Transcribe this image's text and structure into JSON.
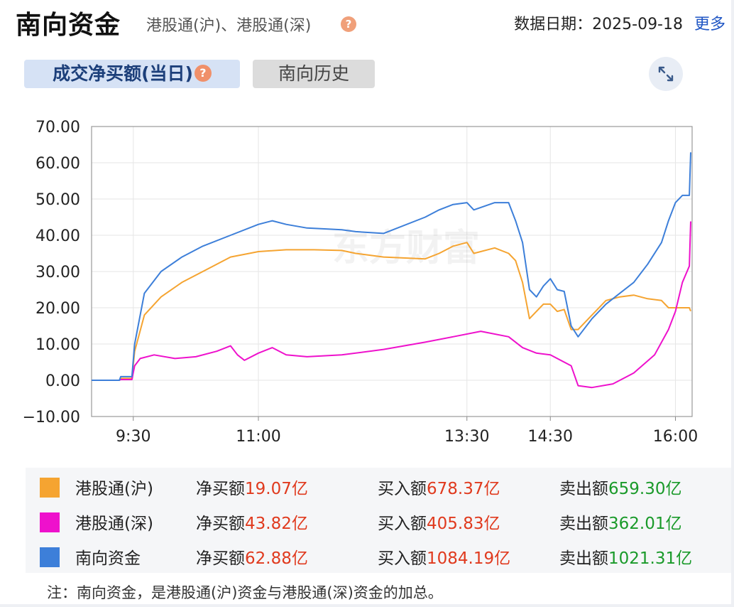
{
  "header": {
    "title": "南向资金",
    "subtitle": "港股通(沪)、港股通(深)",
    "help_icon": "?",
    "date_label": "数据日期：2025-09-18",
    "more_label": "更多"
  },
  "tabs": [
    {
      "label": "成交净买额(当日)",
      "active": true
    },
    {
      "label": "南向历史",
      "active": false
    }
  ],
  "watermark": "东方财富",
  "chart_data": {
    "type": "line",
    "title": "",
    "xlabel": "",
    "ylabel": "",
    "ylim": [
      -10,
      70
    ],
    "yticks": [
      "70.00",
      "60.00",
      "50.00",
      "40.00",
      "30.00",
      "20.00",
      "10.00",
      "0.00",
      "−10.00"
    ],
    "ytick_values": [
      70,
      60,
      50,
      40,
      30,
      20,
      10,
      0,
      -10
    ],
    "xticks": [
      "9:30",
      "11:00",
      "13:30",
      "14:30",
      "16:00"
    ],
    "xtick_values": [
      "09:30",
      "11:00",
      "13:30",
      "14:30",
      "16:00"
    ],
    "grid": true,
    "series": [
      {
        "name": "港股通(沪)",
        "color": "#f5a431",
        "points": [
          [
            "09:00",
            0
          ],
          [
            "09:20",
            0
          ],
          [
            "09:21",
            0.5
          ],
          [
            "09:29",
            0.5
          ],
          [
            "09:31",
            8
          ],
          [
            "09:38",
            18
          ],
          [
            "09:50",
            23
          ],
          [
            "10:05",
            27
          ],
          [
            "10:20",
            30
          ],
          [
            "10:40",
            34
          ],
          [
            "11:00",
            35.5
          ],
          [
            "11:20",
            36
          ],
          [
            "11:40",
            36
          ],
          [
            "12:00",
            35.8
          ],
          [
            "12:10",
            35
          ],
          [
            "12:30",
            34
          ],
          [
            "13:00",
            33.5
          ],
          [
            "13:10",
            35
          ],
          [
            "13:20",
            37
          ],
          [
            "13:30",
            38
          ],
          [
            "13:35",
            35
          ],
          [
            "13:50",
            36.5
          ],
          [
            "14:00",
            35
          ],
          [
            "14:05",
            33
          ],
          [
            "14:10",
            27
          ],
          [
            "14:15",
            17
          ],
          [
            "14:20",
            19
          ],
          [
            "14:25",
            21
          ],
          [
            "14:30",
            21
          ],
          [
            "14:35",
            19
          ],
          [
            "14:40",
            19.5
          ],
          [
            "14:45",
            14
          ],
          [
            "14:50",
            14
          ],
          [
            "15:00",
            18
          ],
          [
            "15:10",
            22
          ],
          [
            "15:20",
            23
          ],
          [
            "15:30",
            23.5
          ],
          [
            "15:40",
            22.5
          ],
          [
            "15:50",
            22
          ],
          [
            "15:55",
            20
          ],
          [
            "16:00",
            20
          ],
          [
            "16:10",
            20
          ],
          [
            "16:11",
            19.07
          ]
        ]
      },
      {
        "name": "港股通(深)",
        "color": "#ee11cc",
        "points": [
          [
            "09:00",
            0
          ],
          [
            "09:20",
            0
          ],
          [
            "09:21",
            0.2
          ],
          [
            "09:29",
            0.2
          ],
          [
            "09:31",
            4
          ],
          [
            "09:35",
            6
          ],
          [
            "09:45",
            7
          ],
          [
            "10:00",
            6
          ],
          [
            "10:15",
            6.5
          ],
          [
            "10:30",
            8
          ],
          [
            "10:40",
            9.5
          ],
          [
            "10:45",
            7
          ],
          [
            "10:50",
            5.5
          ],
          [
            "11:00",
            7.5
          ],
          [
            "11:10",
            9
          ],
          [
            "11:20",
            7
          ],
          [
            "11:35",
            6.5
          ],
          [
            "12:00",
            7
          ],
          [
            "12:30",
            8.5
          ],
          [
            "13:00",
            10.5
          ],
          [
            "13:20",
            12
          ],
          [
            "13:40",
            13.5
          ],
          [
            "14:00",
            12
          ],
          [
            "14:10",
            9
          ],
          [
            "14:20",
            7.5
          ],
          [
            "14:30",
            7
          ],
          [
            "14:45",
            4
          ],
          [
            "14:50",
            -1.5
          ],
          [
            "15:00",
            -2
          ],
          [
            "15:15",
            -1
          ],
          [
            "15:30",
            2
          ],
          [
            "15:45",
            7
          ],
          [
            "15:55",
            14
          ],
          [
            "16:00",
            19
          ],
          [
            "16:05",
            27
          ],
          [
            "16:10",
            31.5
          ],
          [
            "16:11",
            43.82
          ]
        ]
      },
      {
        "name": "南向资金",
        "color": "#3d7fd9",
        "points": [
          [
            "09:00",
            0
          ],
          [
            "09:20",
            0
          ],
          [
            "09:21",
            1
          ],
          [
            "09:29",
            1
          ],
          [
            "09:31",
            10
          ],
          [
            "09:38",
            24
          ],
          [
            "09:50",
            30
          ],
          [
            "10:05",
            34
          ],
          [
            "10:20",
            37
          ],
          [
            "10:40",
            40
          ],
          [
            "11:00",
            43
          ],
          [
            "11:10",
            44
          ],
          [
            "11:20",
            43
          ],
          [
            "11:35",
            42
          ],
          [
            "12:00",
            41.5
          ],
          [
            "12:10",
            41
          ],
          [
            "12:30",
            40.5
          ],
          [
            "13:00",
            45
          ],
          [
            "13:10",
            47
          ],
          [
            "13:20",
            48.5
          ],
          [
            "13:30",
            49
          ],
          [
            "13:35",
            47
          ],
          [
            "13:50",
            49
          ],
          [
            "14:00",
            49
          ],
          [
            "14:05",
            44
          ],
          [
            "14:10",
            38
          ],
          [
            "14:15",
            25
          ],
          [
            "14:20",
            23
          ],
          [
            "14:25",
            26
          ],
          [
            "14:30",
            28
          ],
          [
            "14:35",
            25
          ],
          [
            "14:40",
            24.5
          ],
          [
            "14:45",
            15
          ],
          [
            "14:50",
            12
          ],
          [
            "15:00",
            17
          ],
          [
            "15:10",
            21
          ],
          [
            "15:20",
            24
          ],
          [
            "15:30",
            27
          ],
          [
            "15:40",
            32
          ],
          [
            "15:50",
            38
          ],
          [
            "15:55",
            44
          ],
          [
            "16:00",
            49
          ],
          [
            "16:05",
            51
          ],
          [
            "16:10",
            51
          ],
          [
            "16:11",
            62.88
          ]
        ]
      }
    ],
    "x_range": [
      "09:00",
      "16:12"
    ]
  },
  "legend": [
    {
      "name": "港股通(沪)",
      "color": "#f5a431",
      "net_label": "净买额",
      "net_value": "19.07亿",
      "buy_label": "买入额",
      "buy_value": "678.37亿",
      "sell_label": "卖出额",
      "sell_value": "659.30亿"
    },
    {
      "name": "港股通(深)",
      "color": "#ee11cc",
      "net_label": "净买额",
      "net_value": "43.82亿",
      "buy_label": "买入额",
      "buy_value": "405.83亿",
      "sell_label": "卖出额",
      "sell_value": "362.01亿"
    },
    {
      "name": "南向资金",
      "color": "#3d7fd9",
      "net_label": "净买额",
      "net_value": "62.88亿",
      "buy_label": "买入额",
      "buy_value": "1084.19亿",
      "sell_label": "卖出额",
      "sell_value": "1021.31亿"
    }
  ],
  "note": "注：南向资金，是港股通(沪)资金与港股通(深)资金的加总。"
}
